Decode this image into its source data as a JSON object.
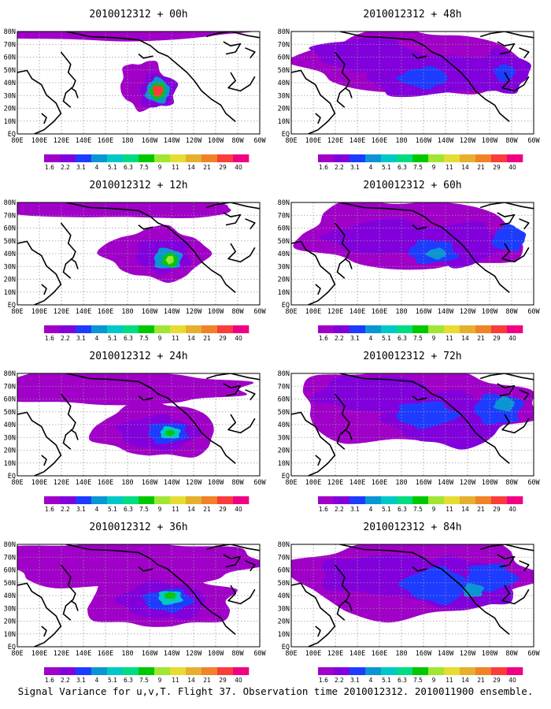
{
  "caption": "Signal Variance for u,v,T. Flight 37. Observation time 2010012312. 2010011900 ensemble.",
  "chart_data": {
    "type": "heatmap",
    "x_ticks": [
      "80E",
      "100E",
      "120E",
      "140E",
      "160E",
      "180",
      "160W",
      "140W",
      "120W",
      "100W",
      "80W",
      "60W"
    ],
    "y_ticks": [
      "EQ",
      "10N",
      "20N",
      "30N",
      "40N",
      "50N",
      "60N",
      "70N",
      "80N"
    ],
    "xlim": [
      "80E",
      "60W"
    ],
    "ylim": [
      "EQ",
      "80N"
    ],
    "grid": true,
    "colorbar": {
      "labels": [
        "1.6",
        "2.2",
        "3.1",
        "4",
        "5.1",
        "6.3",
        "7.5",
        "9",
        "11",
        "14",
        "21",
        "29",
        "40"
      ],
      "colors": [
        "#a000c8",
        "#8200dc",
        "#1e3cff",
        "#0a96d2",
        "#00c8c8",
        "#00dc82",
        "#00c800",
        "#a0e632",
        "#e6dc32",
        "#e6af2d",
        "#f08228",
        "#fa3c3c",
        "#f00082"
      ]
    },
    "panels": [
      {
        "title": "2010012312 + 00h"
      },
      {
        "title": "2010012312 + 48h"
      },
      {
        "title": "2010012312 + 12h"
      },
      {
        "title": "2010012312 + 60h"
      },
      {
        "title": "2010012312 + 24h"
      },
      {
        "title": "2010012312 + 72h"
      },
      {
        "title": "2010012312 + 36h"
      },
      {
        "title": "2010012312 + 84h"
      }
    ]
  }
}
